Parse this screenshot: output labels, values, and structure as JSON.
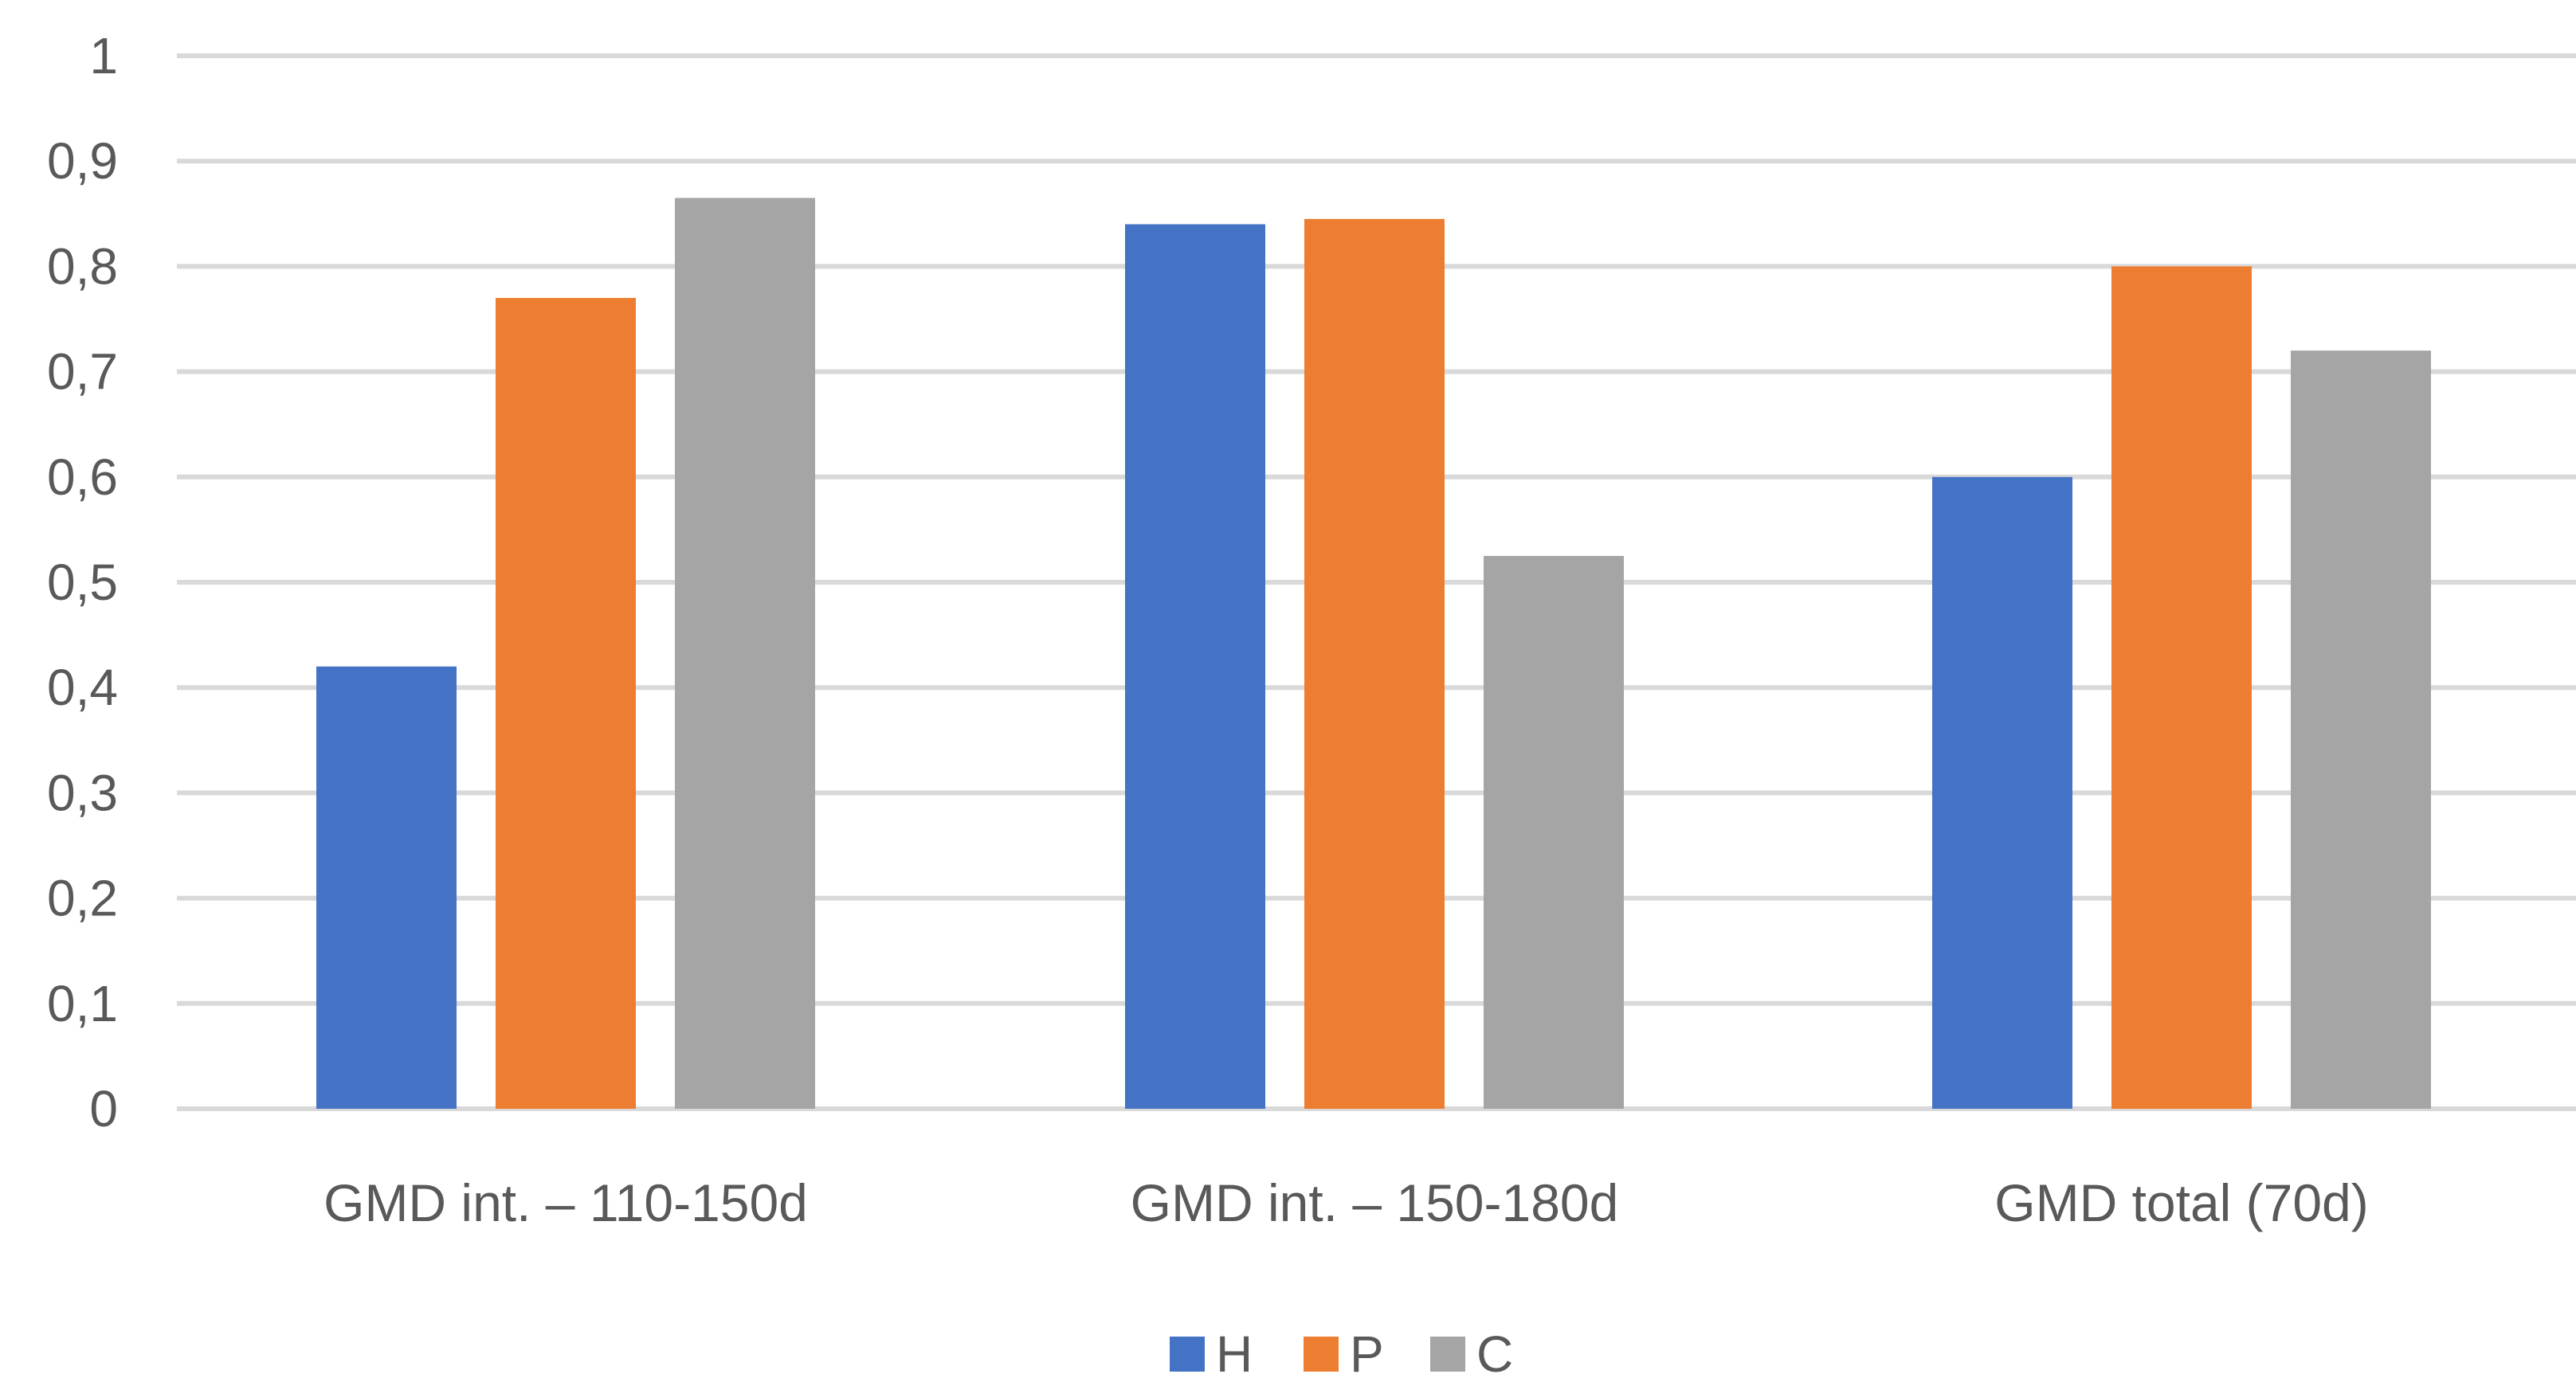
{
  "chart_data": {
    "type": "bar",
    "categories": [
      "GMD int. – 110-150d",
      "GMD int. – 150-180d",
      "GMD total (70d)"
    ],
    "series": [
      {
        "name": "H",
        "values": [
          0.42,
          0.84,
          0.6
        ],
        "color": "#4472C4"
      },
      {
        "name": "P",
        "values": [
          0.77,
          0.845,
          0.8
        ],
        "color": "#ED7D31"
      },
      {
        "name": "C",
        "values": [
          0.865,
          0.525,
          0.72
        ],
        "color": "#A5A5A5"
      }
    ],
    "title": "",
    "xlabel": "",
    "ylabel": "",
    "ylim": [
      0,
      1
    ],
    "yticks": [
      0,
      0.1,
      0.2,
      0.3,
      0.4,
      0.5,
      0.6,
      0.7,
      0.8,
      0.9,
      1
    ],
    "ytick_labels": [
      "0",
      "0,1",
      "0,2",
      "0,3",
      "0,4",
      "0,5",
      "0,6",
      "0,7",
      "0,8",
      "0,9",
      "1"
    ],
    "grid": true,
    "gridline_color": "#D9D9D9",
    "legend_position": "bottom"
  }
}
